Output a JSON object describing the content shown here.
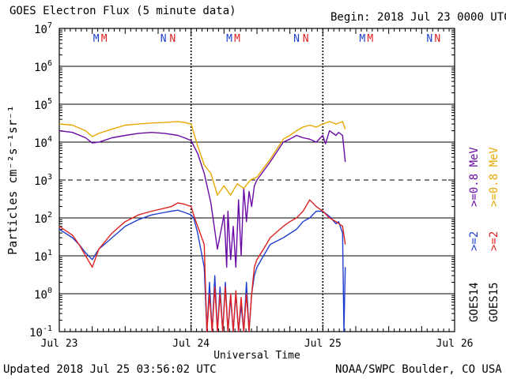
{
  "chart_data": {
    "type": "line",
    "title": "GOES Electron Flux (5 minute data)",
    "begin_label": "Begin:",
    "begin_value": "2018 Jul 23 0000 UTC",
    "xlabel": "Universal Time",
    "ylabel": "Particles cm⁻²s⁻¹sr⁻¹",
    "yscale": "log",
    "ylim": [
      0.1,
      10000000
    ],
    "xlim_days": [
      0,
      3
    ],
    "x_ticks": [
      {
        "day": 0,
        "label": "Jul 23"
      },
      {
        "day": 1,
        "label": "Jul 24"
      },
      {
        "day": 2,
        "label": "Jul 25"
      },
      {
        "day": 3,
        "label": "Jul 26"
      }
    ],
    "y_ticks": [
      {
        "value": 0.1,
        "base": "10",
        "exp": "-1"
      },
      {
        "value": 1,
        "base": "10",
        "exp": "0"
      },
      {
        "value": 10,
        "base": "10",
        "exp": "1"
      },
      {
        "value": 100,
        "base": "10",
        "exp": "2"
      },
      {
        "value": 1000,
        "base": "10",
        "exp": "3"
      },
      {
        "value": 10000,
        "base": "10",
        "exp": "4"
      },
      {
        "value": 100000,
        "base": "10",
        "exp": "5"
      },
      {
        "value": 1000000,
        "base": "10",
        "exp": "6"
      },
      {
        "value": 10000000,
        "base": "10",
        "exp": "7"
      }
    ],
    "dashed_levels": [
      1000
    ],
    "day_boundaries": [
      1,
      2
    ],
    "markers": [
      {
        "label": "M",
        "satellite": "GOES14",
        "color": "#1e3fd0",
        "day": 0.28
      },
      {
        "label": "M",
        "satellite": "GOES15",
        "color": "#e02020",
        "day": 0.34
      },
      {
        "label": "N",
        "satellite": "GOES14",
        "color": "#1e3fd0",
        "day": 0.79
      },
      {
        "label": "N",
        "satellite": "GOES15",
        "color": "#e02020",
        "day": 0.86
      },
      {
        "label": "M",
        "satellite": "GOES14",
        "color": "#1e3fd0",
        "day": 1.29
      },
      {
        "label": "M",
        "satellite": "GOES15",
        "color": "#e02020",
        "day": 1.35
      },
      {
        "label": "N",
        "satellite": "GOES14",
        "color": "#1e3fd0",
        "day": 1.8
      },
      {
        "label": "N",
        "satellite": "GOES15",
        "color": "#e02020",
        "day": 1.87
      },
      {
        "label": "M",
        "satellite": "GOES14",
        "color": "#1e3fd0",
        "day": 2.3
      },
      {
        "label": "M",
        "satellite": "GOES15",
        "color": "#e02020",
        "day": 2.36
      },
      {
        "label": "N",
        "satellite": "GOES14",
        "color": "#1e3fd0",
        "day": 2.81
      },
      {
        "label": "N",
        "satellite": "GOES15",
        "color": "#e02020",
        "day": 2.87
      }
    ],
    "legend": {
      "goes14": "GOES14",
      "goes15": "GOES15",
      "blue_label": ">=2",
      "red_label": ">=2",
      "purple_label": ">=0.8 MeV",
      "orange_label": ">=0.8 MeV"
    },
    "series": [
      {
        "name": "GOES14 >=0.8 MeV",
        "color": "#6a0aa6",
        "x": [
          0.0,
          0.1,
          0.2,
          0.25,
          0.3,
          0.4,
          0.5,
          0.6,
          0.7,
          0.8,
          0.9,
          0.95,
          1.0,
          1.05,
          1.1,
          1.15,
          1.2,
          1.25,
          1.26,
          1.27,
          1.28,
          1.3,
          1.32,
          1.34,
          1.36,
          1.38,
          1.4,
          1.42,
          1.44,
          1.46,
          1.48,
          1.5,
          1.6,
          1.7,
          1.75,
          1.8,
          1.85,
          1.9,
          1.95,
          2.0,
          2.02,
          2.05,
          2.1,
          2.12,
          2.15,
          2.17
        ],
        "y": [
          20000,
          18000,
          13000,
          9500,
          10000,
          13000,
          15000,
          17000,
          18000,
          17000,
          15000,
          13000,
          11000,
          5000,
          1500,
          250,
          15,
          120,
          30,
          5,
          150,
          8,
          60,
          5,
          300,
          10,
          600,
          80,
          500,
          200,
          700,
          1000,
          3000,
          10000,
          12000,
          15000,
          13000,
          12000,
          10000,
          15000,
          9000,
          20000,
          15000,
          18000,
          15000,
          3000
        ]
      },
      {
        "name": "GOES15 >=0.8 MeV",
        "color": "#e8a800",
        "x": [
          0.0,
          0.1,
          0.2,
          0.25,
          0.3,
          0.4,
          0.5,
          0.6,
          0.7,
          0.8,
          0.9,
          0.95,
          1.0,
          1.05,
          1.1,
          1.15,
          1.2,
          1.25,
          1.3,
          1.35,
          1.4,
          1.45,
          1.5,
          1.6,
          1.7,
          1.75,
          1.8,
          1.85,
          1.9,
          1.95,
          2.0,
          2.05,
          2.1,
          2.15,
          2.17
        ],
        "y": [
          30000,
          28000,
          20000,
          14000,
          17000,
          22000,
          28000,
          30000,
          32000,
          33000,
          35000,
          33000,
          30000,
          8000,
          2500,
          1500,
          400,
          700,
          400,
          800,
          600,
          1000,
          1200,
          3500,
          12000,
          15000,
          20000,
          25000,
          28000,
          25000,
          30000,
          35000,
          30000,
          35000,
          22000
        ]
      },
      {
        "name": "GOES14 >=2 MeV",
        "color": "#1e3fd0",
        "x": [
          0.0,
          0.1,
          0.15,
          0.2,
          0.25,
          0.3,
          0.4,
          0.5,
          0.6,
          0.7,
          0.8,
          0.85,
          0.9,
          0.95,
          1.0,
          1.02,
          1.05,
          1.1,
          1.12,
          1.14,
          1.16,
          1.18,
          1.2,
          1.22,
          1.24,
          1.26,
          1.28,
          1.3,
          1.32,
          1.34,
          1.36,
          1.38,
          1.4,
          1.42,
          1.44,
          1.46,
          1.48,
          1.5,
          1.55,
          1.6,
          1.7,
          1.8,
          1.85,
          1.9,
          1.95,
          2.0,
          2.05,
          2.1,
          2.12,
          2.15,
          2.16,
          2.17
        ],
        "y": [
          50,
          30,
          20,
          12,
          8,
          15,
          30,
          60,
          90,
          120,
          140,
          150,
          160,
          140,
          120,
          100,
          40,
          5,
          0.1,
          2,
          0.1,
          3,
          0.1,
          1.5,
          0.1,
          2,
          0.1,
          0.8,
          0.1,
          1,
          0.1,
          0.5,
          0.1,
          2,
          0.1,
          1,
          3,
          5,
          10,
          20,
          30,
          50,
          80,
          100,
          150,
          150,
          110,
          70,
          80,
          40,
          0.1,
          5
        ]
      },
      {
        "name": "GOES15 >=2 MeV",
        "color": "#e02020",
        "x": [
          0.0,
          0.1,
          0.15,
          0.2,
          0.25,
          0.3,
          0.4,
          0.5,
          0.6,
          0.7,
          0.8,
          0.85,
          0.9,
          0.95,
          1.0,
          1.02,
          1.05,
          1.1,
          1.12,
          1.14,
          1.16,
          1.18,
          1.2,
          1.22,
          1.24,
          1.26,
          1.28,
          1.3,
          1.32,
          1.34,
          1.36,
          1.38,
          1.4,
          1.42,
          1.44,
          1.46,
          1.48,
          1.5,
          1.55,
          1.6,
          1.7,
          1.75,
          1.8,
          1.85,
          1.9,
          1.95,
          2.0,
          2.05,
          2.1,
          2.15,
          2.17
        ],
        "y": [
          60,
          35,
          20,
          10,
          5,
          15,
          40,
          80,
          120,
          150,
          180,
          200,
          250,
          230,
          200,
          120,
          60,
          20,
          0.1,
          1,
          0.1,
          1.5,
          0.1,
          1,
          0.1,
          1.5,
          0.1,
          1,
          0.1,
          1.2,
          0.1,
          0.8,
          0.1,
          1,
          0.1,
          1,
          5,
          8,
          15,
          30,
          60,
          80,
          100,
          150,
          300,
          200,
          150,
          100,
          80,
          60,
          20
        ]
      }
    ]
  },
  "footer": {
    "updated": "Updated 2018 Jul 25 03:56:02 UTC",
    "credit": "NOAA/SWPC Boulder, CO USA"
  }
}
